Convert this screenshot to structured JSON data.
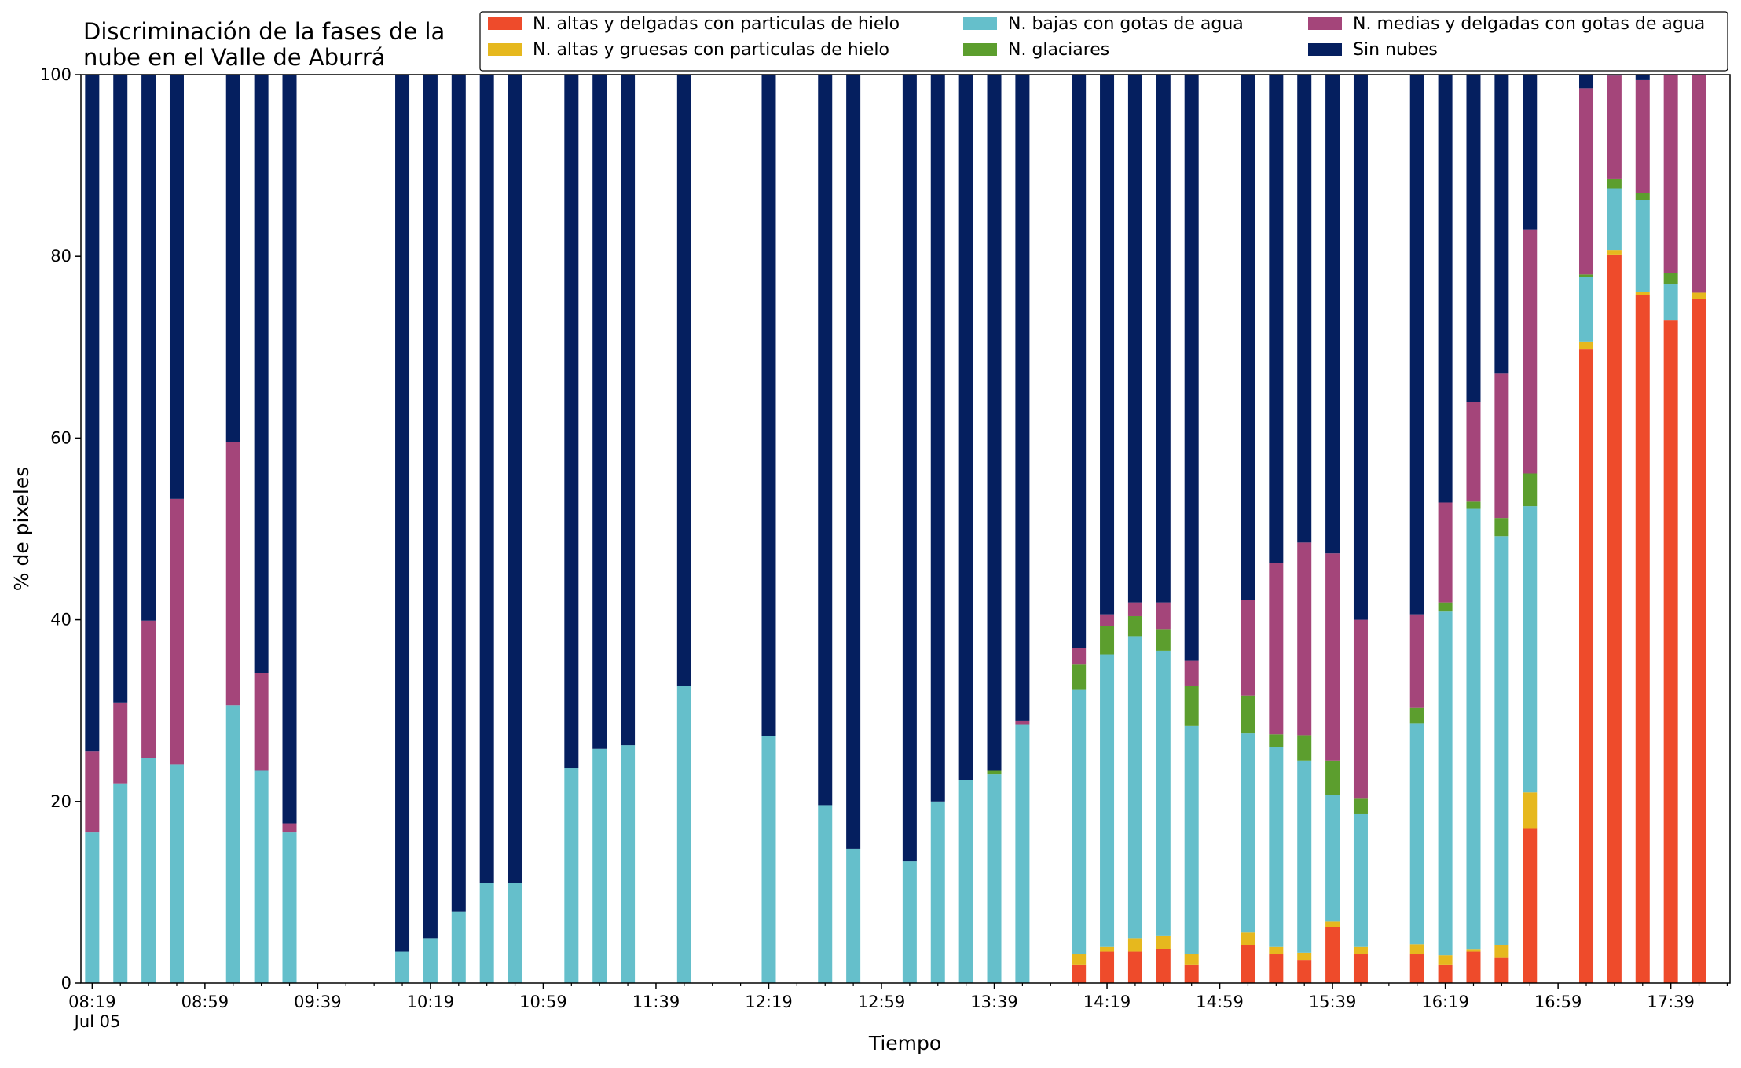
{
  "chart_data": {
    "type": "bar",
    "stacked": true,
    "title": "Discriminación de la fases de la nube en el Valle de Aburrá",
    "title_lines": [
      "Discriminación de la fases de la",
      "nube en el Valle de Aburrá"
    ],
    "xlabel": "Tiempo",
    "ylabel": "% de pixeles",
    "ylim": [
      0,
      100
    ],
    "yticks": [
      0,
      20,
      40,
      60,
      80,
      100
    ],
    "grid": false,
    "legend_position": "top-right",
    "x_range_minutes": [
      "08:15",
      "18:00"
    ],
    "x_date_label": "Jul 05",
    "xtick_labels": [
      "08:19",
      "08:59",
      "09:39",
      "10:19",
      "10:59",
      "11:39",
      "12:19",
      "12:59",
      "13:39",
      "14:19",
      "14:59",
      "15:39",
      "16:19",
      "16:59",
      "17:39"
    ],
    "categories": [
      "08:19",
      "08:29",
      "08:39",
      "08:49",
      "09:09",
      "09:19",
      "09:29",
      "10:09",
      "10:19",
      "10:29",
      "10:39",
      "10:49",
      "11:09",
      "11:19",
      "11:29",
      "11:49",
      "12:19",
      "12:39",
      "12:49",
      "13:09",
      "13:19",
      "13:29",
      "13:39",
      "13:49",
      "14:09",
      "14:19",
      "14:29",
      "14:39",
      "14:49",
      "15:09",
      "15:19",
      "15:29",
      "15:39",
      "15:49",
      "16:09",
      "16:19",
      "16:29",
      "16:39",
      "16:49",
      "17:09",
      "17:19",
      "17:29",
      "17:39",
      "17:49"
    ],
    "series": [
      {
        "name": "N. altas y delgadas con particulas de hielo",
        "color": "#ee4b2b",
        "values": [
          0,
          0,
          0,
          0,
          0,
          0,
          0,
          0,
          0,
          0,
          0,
          0,
          0,
          0,
          0,
          0,
          0,
          0,
          0,
          0,
          0,
          0,
          0,
          0,
          2.0,
          3.5,
          3.5,
          3.8,
          2.0,
          4.2,
          3.2,
          2.5,
          6.2,
          3.2,
          3.2,
          2.0,
          3.5,
          2.8,
          17.0,
          69.8,
          80.2,
          75.7,
          73.0,
          75.3
        ]
      },
      {
        "name": "N. altas y gruesas con particulas de hielo",
        "color": "#e6b81e",
        "values": [
          0,
          0,
          0,
          0,
          0,
          0,
          0,
          0,
          0,
          0,
          0,
          0,
          0,
          0,
          0,
          0,
          0,
          0,
          0,
          0,
          0,
          0,
          0,
          0,
          1.2,
          0.5,
          1.4,
          1.4,
          1.2,
          1.4,
          0.8,
          0.8,
          0.6,
          0.8,
          1.1,
          1.1,
          0.2,
          1.4,
          4.0,
          0.8,
          0.5,
          0.4,
          0,
          0.7
        ]
      },
      {
        "name": "N. bajas con gotas de agua",
        "color": "#65bfcb",
        "values": [
          16.6,
          22.0,
          24.8,
          24.1,
          30.6,
          23.4,
          16.6,
          3.5,
          4.9,
          7.9,
          11.0,
          11.0,
          23.7,
          25.8,
          26.2,
          32.7,
          27.2,
          19.6,
          14.8,
          13.4,
          20.0,
          22.4,
          23.0,
          28.5,
          29.1,
          32.2,
          33.3,
          31.4,
          25.1,
          21.9,
          22.0,
          21.2,
          13.9,
          14.6,
          24.3,
          37.8,
          48.5,
          45.0,
          31.5,
          7.1,
          6.8,
          10.1,
          3.9,
          0
        ]
      },
      {
        "name": "N. glaciares",
        "color": "#5c9e2e",
        "values": [
          0,
          0,
          0,
          0,
          0,
          0,
          0,
          0,
          0,
          0,
          0,
          0,
          0,
          0,
          0,
          0,
          0,
          0,
          0,
          0,
          0,
          0,
          0.4,
          0,
          2.8,
          3.1,
          2.2,
          2.3,
          4.4,
          4.1,
          1.4,
          2.8,
          3.8,
          1.7,
          1.7,
          1.0,
          0.8,
          2.0,
          3.6,
          0.3,
          1.0,
          0.8,
          1.3,
          0
        ]
      },
      {
        "name": "N. medias y delgadas con gotas de agua",
        "color": "#a4457a",
        "values": [
          8.9,
          8.9,
          15.1,
          29.2,
          29.0,
          10.7,
          1.0,
          0,
          0,
          0,
          0,
          0,
          0,
          0,
          0,
          0,
          0,
          0,
          0,
          0,
          0,
          0,
          0,
          0.4,
          1.8,
          1.3,
          1.5,
          3.0,
          2.8,
          10.6,
          18.8,
          21.2,
          22.8,
          19.7,
          10.3,
          11.0,
          11.0,
          15.9,
          26.8,
          20.5,
          11.4,
          12.4,
          21.8,
          24.0
        ]
      },
      {
        "name": "Sin nubes",
        "color": "#051f5f",
        "values": [
          74.5,
          69.1,
          60.1,
          46.7,
          40.4,
          65.9,
          82.4,
          96.5,
          95.1,
          92.1,
          89.0,
          89.0,
          76.3,
          74.2,
          73.8,
          67.3,
          72.8,
          80.4,
          85.2,
          86.6,
          80.0,
          77.6,
          76.6,
          71.1,
          63.1,
          59.4,
          58.1,
          58.1,
          64.5,
          57.8,
          53.8,
          51.5,
          52.7,
          60.0,
          59.4,
          47.1,
          36.0,
          32.9,
          17.1,
          1.5,
          0.1,
          0.6,
          0,
          0
        ]
      }
    ]
  }
}
